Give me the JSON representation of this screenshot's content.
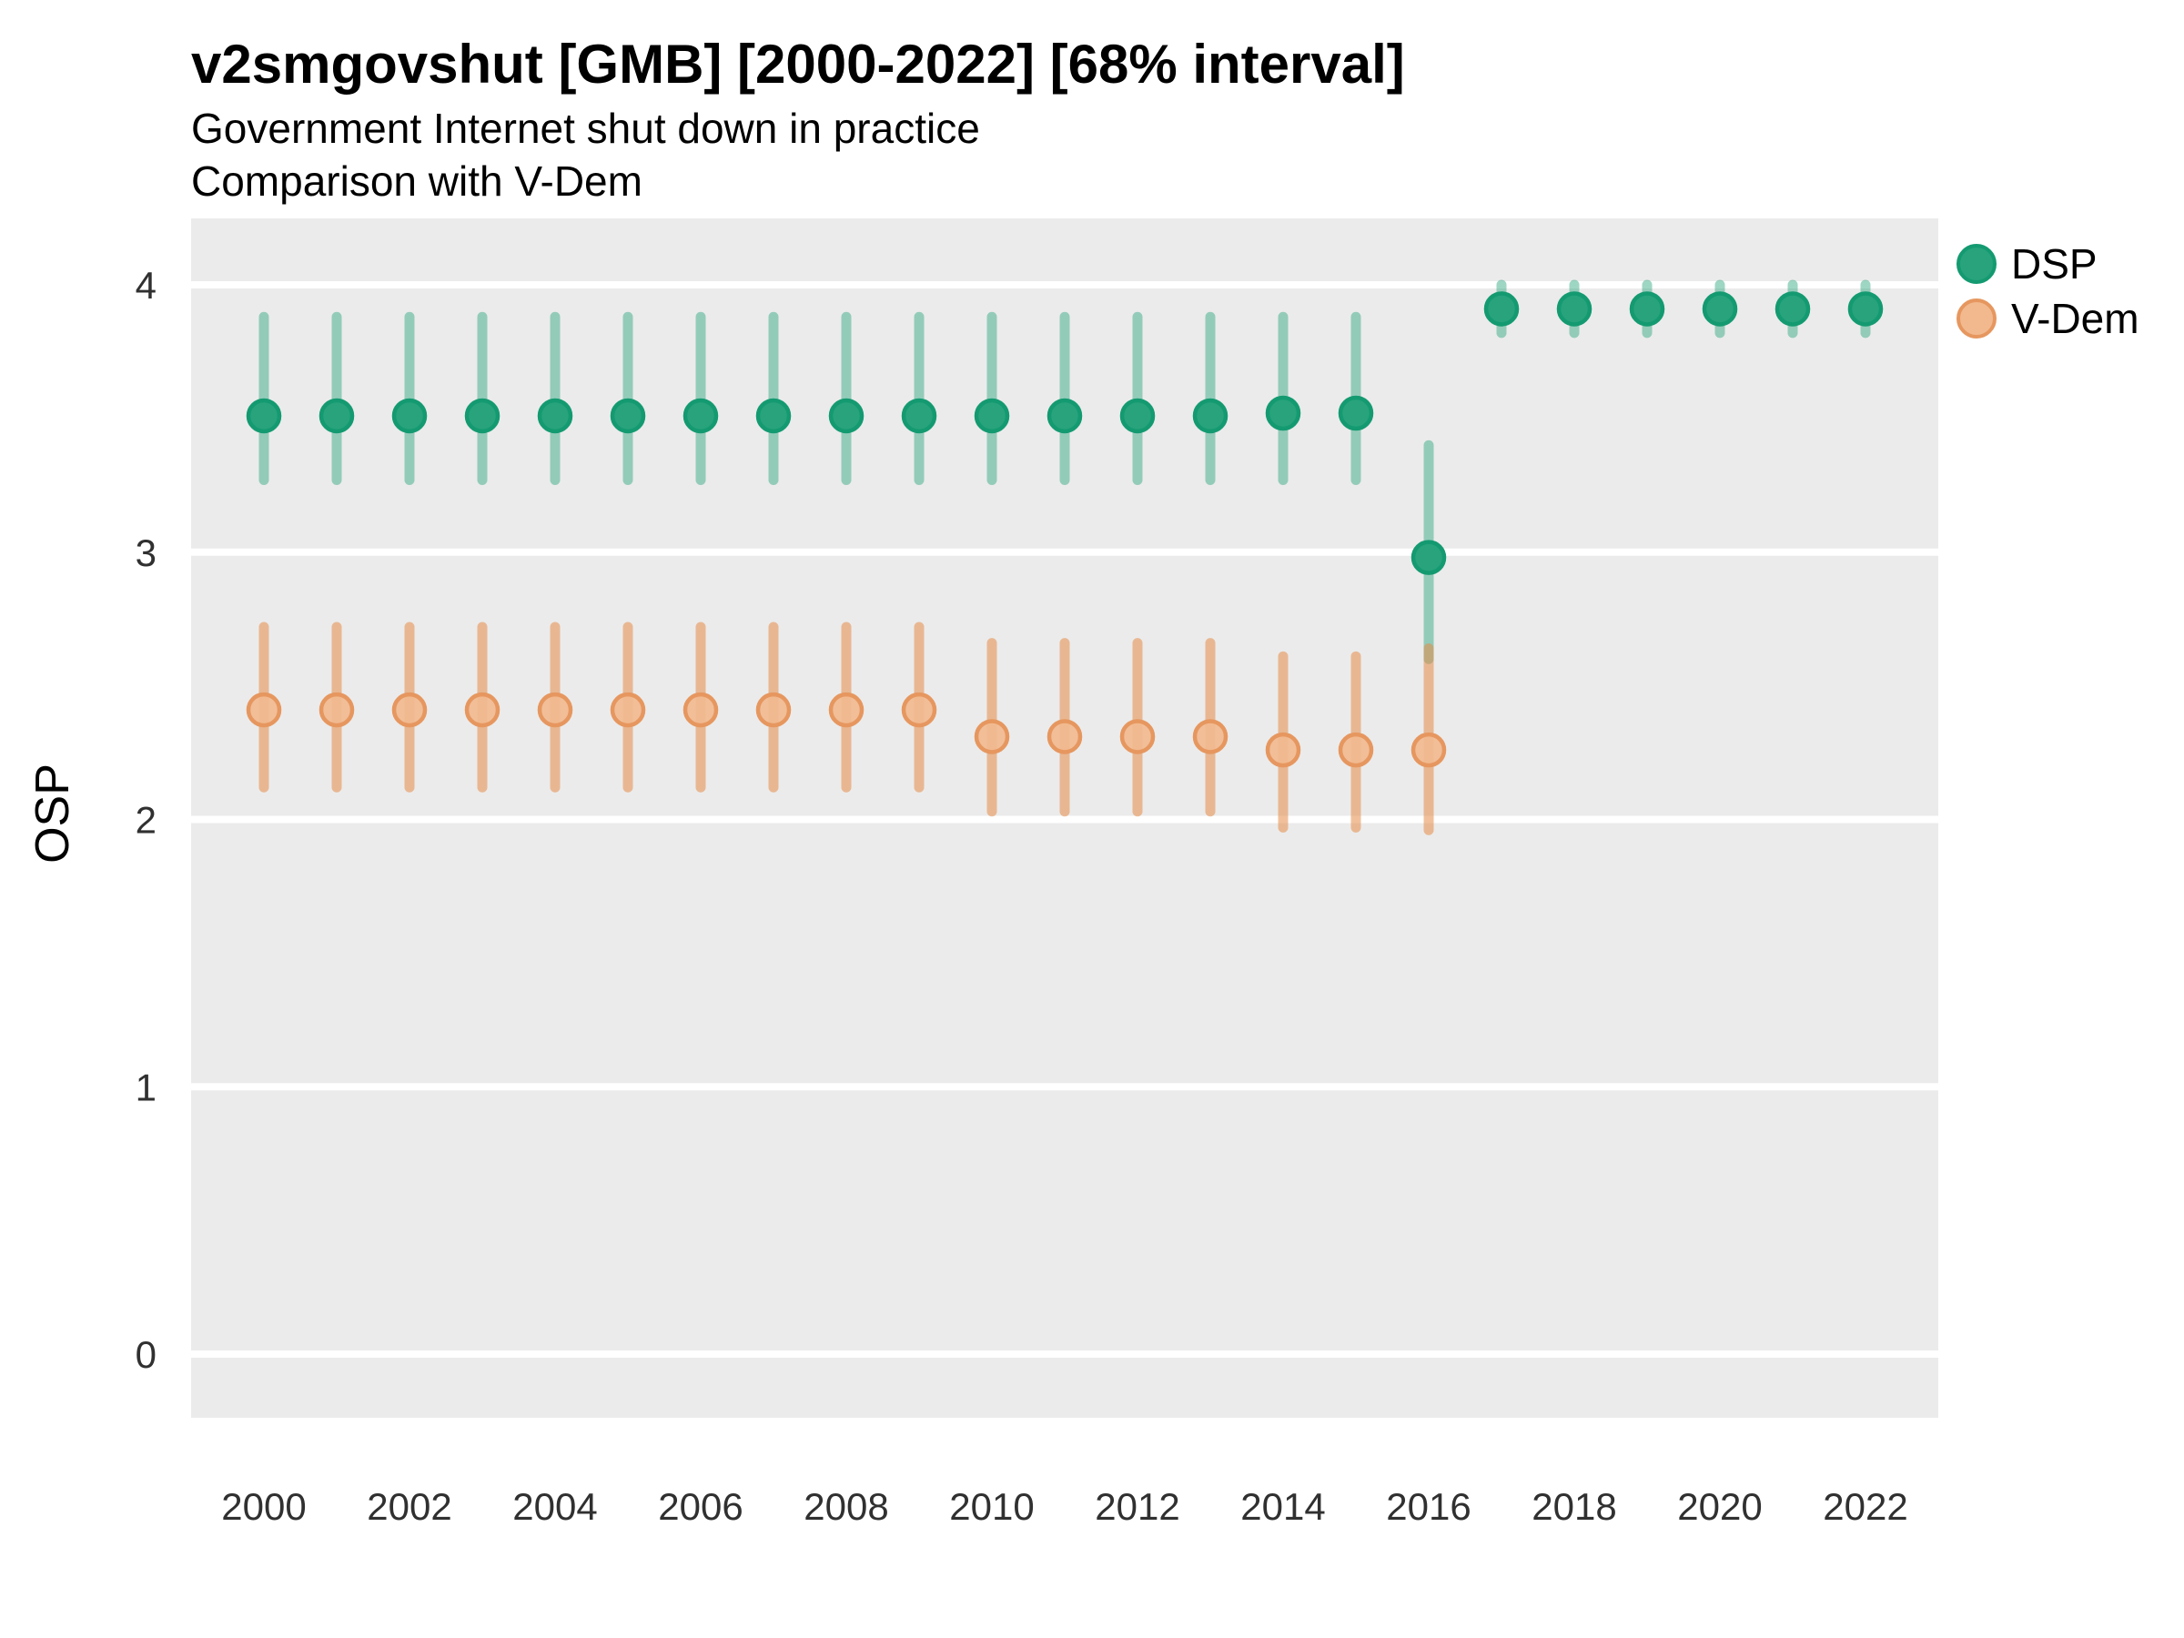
{
  "header": {
    "title": "v2smgovshut [GMB] [2000-2022] [68% interval]",
    "subtitle_line1": "Government Internet shut down in practice",
    "subtitle_line2": "Comparison with V-Dem"
  },
  "colors": {
    "panel_background": "#ebebeb",
    "gridline": "#ffffff",
    "tick_label": "#303030",
    "dsp_point_fill": "#28a37c",
    "dsp_point_stroke": "#149a70",
    "dsp_bar": "rgba(41,163,124,0.45)",
    "vdem_point_fill": "#f2b98f",
    "vdem_point_stroke": "#e6975f",
    "vdem_bar": "rgba(229,140,73,0.55)"
  },
  "legend": {
    "items": [
      {
        "label": "DSP"
      },
      {
        "label": "V-Dem"
      }
    ]
  },
  "chart_data": {
    "type": "scatter",
    "subtype": "pointrange",
    "interval": "68%",
    "title": "v2smgovshut [GMB] [2000-2022] [68% interval]",
    "subtitle": [
      "Government Internet shut down in practice",
      "Comparison with V-Dem"
    ],
    "xlabel": "",
    "ylabel": "OSP",
    "ylim": [
      -0.24,
      4.24
    ],
    "yticks": [
      0,
      1,
      2,
      3,
      4
    ],
    "xticks": [
      2000,
      2002,
      2004,
      2006,
      2008,
      2010,
      2012,
      2014,
      2016,
      2018,
      2020,
      2022
    ],
    "grid": "major-horizontal-only",
    "legend_position": "right",
    "series": [
      {
        "name": "DSP",
        "points": [
          {
            "year": 2000,
            "est": 3.51,
            "lo": 3.27,
            "hi": 3.88
          },
          {
            "year": 2001,
            "est": 3.51,
            "lo": 3.27,
            "hi": 3.88
          },
          {
            "year": 2002,
            "est": 3.51,
            "lo": 3.27,
            "hi": 3.88
          },
          {
            "year": 2003,
            "est": 3.51,
            "lo": 3.27,
            "hi": 3.88
          },
          {
            "year": 2004,
            "est": 3.51,
            "lo": 3.27,
            "hi": 3.88
          },
          {
            "year": 2005,
            "est": 3.51,
            "lo": 3.27,
            "hi": 3.88
          },
          {
            "year": 2006,
            "est": 3.51,
            "lo": 3.27,
            "hi": 3.88
          },
          {
            "year": 2007,
            "est": 3.51,
            "lo": 3.27,
            "hi": 3.88
          },
          {
            "year": 2008,
            "est": 3.51,
            "lo": 3.27,
            "hi": 3.88
          },
          {
            "year": 2009,
            "est": 3.51,
            "lo": 3.27,
            "hi": 3.88
          },
          {
            "year": 2010,
            "est": 3.51,
            "lo": 3.27,
            "hi": 3.88
          },
          {
            "year": 2011,
            "est": 3.51,
            "lo": 3.27,
            "hi": 3.88
          },
          {
            "year": 2012,
            "est": 3.51,
            "lo": 3.27,
            "hi": 3.88
          },
          {
            "year": 2013,
            "est": 3.51,
            "lo": 3.27,
            "hi": 3.88
          },
          {
            "year": 2014,
            "est": 3.52,
            "lo": 3.27,
            "hi": 3.88
          },
          {
            "year": 2015,
            "est": 3.52,
            "lo": 3.27,
            "hi": 3.88
          },
          {
            "year": 2016,
            "est": 2.98,
            "lo": 2.6,
            "hi": 3.4
          },
          {
            "year": 2017,
            "est": 3.91,
            "lo": 3.82,
            "hi": 4.0
          },
          {
            "year": 2018,
            "est": 3.91,
            "lo": 3.82,
            "hi": 4.0
          },
          {
            "year": 2019,
            "est": 3.91,
            "lo": 3.82,
            "hi": 4.0
          },
          {
            "year": 2020,
            "est": 3.91,
            "lo": 3.82,
            "hi": 4.0
          },
          {
            "year": 2021,
            "est": 3.91,
            "lo": 3.82,
            "hi": 4.0
          },
          {
            "year": 2022,
            "est": 3.91,
            "lo": 3.82,
            "hi": 4.0
          }
        ]
      },
      {
        "name": "V-Dem",
        "points": [
          {
            "year": 2000,
            "est": 2.41,
            "lo": 2.12,
            "hi": 2.72
          },
          {
            "year": 2001,
            "est": 2.41,
            "lo": 2.12,
            "hi": 2.72
          },
          {
            "year": 2002,
            "est": 2.41,
            "lo": 2.12,
            "hi": 2.72
          },
          {
            "year": 2003,
            "est": 2.41,
            "lo": 2.12,
            "hi": 2.72
          },
          {
            "year": 2004,
            "est": 2.41,
            "lo": 2.12,
            "hi": 2.72
          },
          {
            "year": 2005,
            "est": 2.41,
            "lo": 2.12,
            "hi": 2.72
          },
          {
            "year": 2006,
            "est": 2.41,
            "lo": 2.12,
            "hi": 2.72
          },
          {
            "year": 2007,
            "est": 2.41,
            "lo": 2.12,
            "hi": 2.72
          },
          {
            "year": 2008,
            "est": 2.41,
            "lo": 2.12,
            "hi": 2.72
          },
          {
            "year": 2009,
            "est": 2.41,
            "lo": 2.12,
            "hi": 2.72
          },
          {
            "year": 2010,
            "est": 2.31,
            "lo": 2.03,
            "hi": 2.66
          },
          {
            "year": 2011,
            "est": 2.31,
            "lo": 2.03,
            "hi": 2.66
          },
          {
            "year": 2012,
            "est": 2.31,
            "lo": 2.03,
            "hi": 2.66
          },
          {
            "year": 2013,
            "est": 2.31,
            "lo": 2.03,
            "hi": 2.66
          },
          {
            "year": 2014,
            "est": 2.26,
            "lo": 1.97,
            "hi": 2.61
          },
          {
            "year": 2015,
            "est": 2.26,
            "lo": 1.97,
            "hi": 2.61
          },
          {
            "year": 2016,
            "est": 2.26,
            "lo": 1.96,
            "hi": 2.64
          }
        ]
      }
    ]
  }
}
